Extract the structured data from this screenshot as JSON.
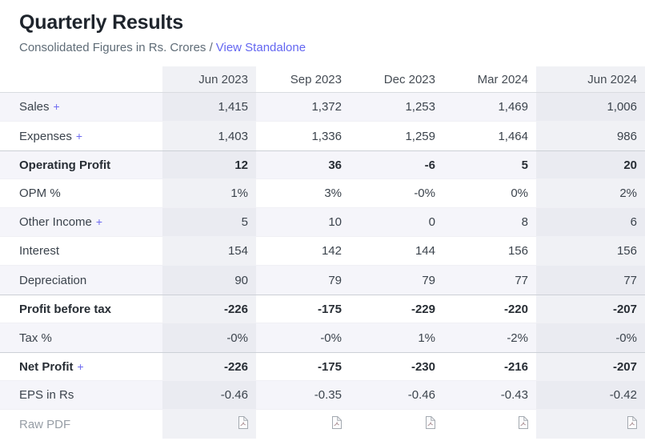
{
  "header": {
    "title": "Quarterly Results",
    "subtitle_prefix": "Consolidated Figures in Rs. Crores /",
    "standalone_link_label": "View Standalone"
  },
  "colors": {
    "accent_purple": "#6366f1",
    "stripe_row": "#f5f5fa",
    "highlighted_column": "#f0f1f5",
    "pdf_icon_gray": "#a3a9b0",
    "pdf_icon_mark": "#ab8f93"
  },
  "table": {
    "columns": [
      "Jun 2023",
      "Sep 2023",
      "Dec 2023",
      "Mar 2024",
      "Jun 2024"
    ],
    "highlighted_columns": [
      0,
      4
    ],
    "plus_symbol": "+",
    "pdf_icon_name": "file-pdf-icon",
    "rows": [
      {
        "label": "Sales",
        "expandable": true,
        "bold": false,
        "section_start": false,
        "values": [
          "1,415",
          "1,372",
          "1,253",
          "1,469",
          "1,006"
        ]
      },
      {
        "label": "Expenses",
        "expandable": true,
        "bold": false,
        "section_start": false,
        "values": [
          "1,403",
          "1,336",
          "1,259",
          "1,464",
          "986"
        ]
      },
      {
        "label": "Operating Profit",
        "expandable": false,
        "bold": true,
        "section_start": true,
        "values": [
          "12",
          "36",
          "-6",
          "5",
          "20"
        ]
      },
      {
        "label": "OPM %",
        "expandable": false,
        "bold": false,
        "section_start": false,
        "values": [
          "1%",
          "3%",
          "-0%",
          "0%",
          "2%"
        ]
      },
      {
        "label": "Other Income",
        "expandable": true,
        "bold": false,
        "section_start": false,
        "values": [
          "5",
          "10",
          "0",
          "8",
          "6"
        ]
      },
      {
        "label": "Interest",
        "expandable": false,
        "bold": false,
        "section_start": false,
        "values": [
          "154",
          "142",
          "144",
          "156",
          "156"
        ]
      },
      {
        "label": "Depreciation",
        "expandable": false,
        "bold": false,
        "section_start": false,
        "values": [
          "90",
          "79",
          "79",
          "77",
          "77"
        ]
      },
      {
        "label": "Profit before tax",
        "expandable": false,
        "bold": true,
        "section_start": true,
        "values": [
          "-226",
          "-175",
          "-229",
          "-220",
          "-207"
        ]
      },
      {
        "label": "Tax %",
        "expandable": false,
        "bold": false,
        "section_start": false,
        "values": [
          "-0%",
          "-0%",
          "1%",
          "-2%",
          "-0%"
        ]
      },
      {
        "label": "Net Profit",
        "expandable": true,
        "bold": true,
        "section_start": true,
        "values": [
          "-226",
          "-175",
          "-230",
          "-216",
          "-207"
        ]
      },
      {
        "label": "EPS in Rs",
        "expandable": false,
        "bold": false,
        "section_start": false,
        "values": [
          "-0.46",
          "-0.35",
          "-0.46",
          "-0.43",
          "-0.42"
        ]
      },
      {
        "label": "Raw PDF",
        "expandable": false,
        "bold": false,
        "section_start": false,
        "muted": true,
        "icon_row": true,
        "values": [
          "",
          "",
          "",
          "",
          ""
        ]
      }
    ]
  }
}
